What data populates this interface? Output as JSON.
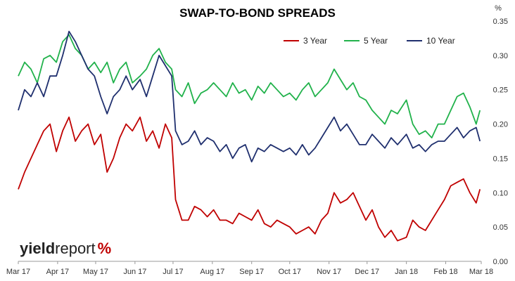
{
  "chart_data": {
    "type": "line",
    "title": "SWAP-TO-BOND SPREADS",
    "ylabel_unit": "%",
    "ylim": [
      0,
      0.35
    ],
    "yticks": [
      "0.00",
      "0.05",
      "0.10",
      "0.15",
      "0.20",
      "0.25",
      "0.30",
      "0.35"
    ],
    "xlim": [
      "2017-03-01",
      "2018-03-01"
    ],
    "xticks": [
      {
        "date": "2017-03-01",
        "label": "Mar 17"
      },
      {
        "date": "2017-04-01",
        "label": "Apr 17"
      },
      {
        "date": "2017-05-01",
        "label": "May 17"
      },
      {
        "date": "2017-06-01",
        "label": "Jun 17"
      },
      {
        "date": "2017-07-01",
        "label": "Jul 17"
      },
      {
        "date": "2017-08-01",
        "label": "Aug 17"
      },
      {
        "date": "2017-09-01",
        "label": "Sep 17"
      },
      {
        "date": "2017-10-01",
        "label": "Oct 17"
      },
      {
        "date": "2017-11-01",
        "label": "Nov 17"
      },
      {
        "date": "2017-12-01",
        "label": "Dec 17"
      },
      {
        "date": "2018-01-01",
        "label": "Jan 18"
      },
      {
        "date": "2018-02-01",
        "label": "Feb 18"
      },
      {
        "date": "2018-03-01",
        "label": "Mar 18"
      }
    ],
    "grid": false,
    "legend_position": "top-right",
    "series": [
      {
        "name": "3 Year",
        "color": "#c00000",
        "points": [
          [
            "2017-03-01",
            0.105
          ],
          [
            "2017-03-06",
            0.13
          ],
          [
            "2017-03-11",
            0.15
          ],
          [
            "2017-03-16",
            0.17
          ],
          [
            "2017-03-21",
            0.19
          ],
          [
            "2017-03-26",
            0.2
          ],
          [
            "2017-03-31",
            0.16
          ],
          [
            "2017-04-05",
            0.19
          ],
          [
            "2017-04-10",
            0.21
          ],
          [
            "2017-04-15",
            0.175
          ],
          [
            "2017-04-20",
            0.19
          ],
          [
            "2017-04-25",
            0.2
          ],
          [
            "2017-04-30",
            0.17
          ],
          [
            "2017-05-05",
            0.185
          ],
          [
            "2017-05-10",
            0.13
          ],
          [
            "2017-05-15",
            0.15
          ],
          [
            "2017-05-20",
            0.18
          ],
          [
            "2017-05-25",
            0.2
          ],
          [
            "2017-05-30",
            0.19
          ],
          [
            "2017-06-05",
            0.21
          ],
          [
            "2017-06-10",
            0.175
          ],
          [
            "2017-06-15",
            0.19
          ],
          [
            "2017-06-20",
            0.165
          ],
          [
            "2017-06-25",
            0.2
          ],
          [
            "2017-06-30",
            0.18
          ],
          [
            "2017-07-03",
            0.09
          ],
          [
            "2017-07-08",
            0.06
          ],
          [
            "2017-07-13",
            0.06
          ],
          [
            "2017-07-18",
            0.08
          ],
          [
            "2017-07-23",
            0.075
          ],
          [
            "2017-07-28",
            0.065
          ],
          [
            "2017-08-02",
            0.075
          ],
          [
            "2017-08-07",
            0.06
          ],
          [
            "2017-08-12",
            0.06
          ],
          [
            "2017-08-17",
            0.055
          ],
          [
            "2017-08-22",
            0.07
          ],
          [
            "2017-08-27",
            0.065
          ],
          [
            "2017-09-01",
            0.06
          ],
          [
            "2017-09-06",
            0.075
          ],
          [
            "2017-09-11",
            0.055
          ],
          [
            "2017-09-16",
            0.05
          ],
          [
            "2017-09-21",
            0.06
          ],
          [
            "2017-09-26",
            0.055
          ],
          [
            "2017-10-01",
            0.05
          ],
          [
            "2017-10-06",
            0.04
          ],
          [
            "2017-10-11",
            0.045
          ],
          [
            "2017-10-16",
            0.05
          ],
          [
            "2017-10-21",
            0.04
          ],
          [
            "2017-10-26",
            0.06
          ],
          [
            "2017-10-31",
            0.07
          ],
          [
            "2017-11-05",
            0.1
          ],
          [
            "2017-11-10",
            0.085
          ],
          [
            "2017-11-15",
            0.09
          ],
          [
            "2017-11-20",
            0.1
          ],
          [
            "2017-11-25",
            0.08
          ],
          [
            "2017-11-30",
            0.06
          ],
          [
            "2017-12-05",
            0.075
          ],
          [
            "2017-12-10",
            0.05
          ],
          [
            "2017-12-15",
            0.035
          ],
          [
            "2017-12-20",
            0.045
          ],
          [
            "2017-12-25",
            0.03
          ],
          [
            "2018-01-01",
            0.035
          ],
          [
            "2018-01-06",
            0.06
          ],
          [
            "2018-01-11",
            0.05
          ],
          [
            "2018-01-16",
            0.045
          ],
          [
            "2018-01-21",
            0.06
          ],
          [
            "2018-01-26",
            0.075
          ],
          [
            "2018-01-31",
            0.09
          ],
          [
            "2018-02-05",
            0.11
          ],
          [
            "2018-02-10",
            0.115
          ],
          [
            "2018-02-15",
            0.12
          ],
          [
            "2018-02-20",
            0.1
          ],
          [
            "2018-02-25",
            0.085
          ],
          [
            "2018-02-28",
            0.105
          ]
        ]
      },
      {
        "name": "5 Year",
        "color": "#21b24b",
        "points": [
          [
            "2017-03-01",
            0.27
          ],
          [
            "2017-03-06",
            0.29
          ],
          [
            "2017-03-11",
            0.28
          ],
          [
            "2017-03-16",
            0.26
          ],
          [
            "2017-03-21",
            0.295
          ],
          [
            "2017-03-26",
            0.3
          ],
          [
            "2017-03-31",
            0.29
          ],
          [
            "2017-04-05",
            0.32
          ],
          [
            "2017-04-10",
            0.33
          ],
          [
            "2017-04-15",
            0.31
          ],
          [
            "2017-04-20",
            0.3
          ],
          [
            "2017-04-25",
            0.28
          ],
          [
            "2017-04-30",
            0.29
          ],
          [
            "2017-05-05",
            0.275
          ],
          [
            "2017-05-10",
            0.29
          ],
          [
            "2017-05-15",
            0.26
          ],
          [
            "2017-05-20",
            0.28
          ],
          [
            "2017-05-25",
            0.29
          ],
          [
            "2017-05-30",
            0.26
          ],
          [
            "2017-06-05",
            0.27
          ],
          [
            "2017-06-10",
            0.28
          ],
          [
            "2017-06-15",
            0.3
          ],
          [
            "2017-06-20",
            0.31
          ],
          [
            "2017-06-25",
            0.29
          ],
          [
            "2017-06-30",
            0.28
          ],
          [
            "2017-07-03",
            0.25
          ],
          [
            "2017-07-08",
            0.24
          ],
          [
            "2017-07-13",
            0.26
          ],
          [
            "2017-07-18",
            0.23
          ],
          [
            "2017-07-23",
            0.245
          ],
          [
            "2017-07-28",
            0.25
          ],
          [
            "2017-08-02",
            0.26
          ],
          [
            "2017-08-07",
            0.25
          ],
          [
            "2017-08-12",
            0.24
          ],
          [
            "2017-08-17",
            0.26
          ],
          [
            "2017-08-22",
            0.245
          ],
          [
            "2017-08-27",
            0.25
          ],
          [
            "2017-09-01",
            0.235
          ],
          [
            "2017-09-06",
            0.255
          ],
          [
            "2017-09-11",
            0.245
          ],
          [
            "2017-09-16",
            0.26
          ],
          [
            "2017-09-21",
            0.25
          ],
          [
            "2017-09-26",
            0.24
          ],
          [
            "2017-10-01",
            0.245
          ],
          [
            "2017-10-06",
            0.235
          ],
          [
            "2017-10-11",
            0.25
          ],
          [
            "2017-10-16",
            0.26
          ],
          [
            "2017-10-21",
            0.24
          ],
          [
            "2017-10-26",
            0.25
          ],
          [
            "2017-10-31",
            0.26
          ],
          [
            "2017-11-05",
            0.28
          ],
          [
            "2017-11-10",
            0.265
          ],
          [
            "2017-11-15",
            0.25
          ],
          [
            "2017-11-20",
            0.26
          ],
          [
            "2017-11-25",
            0.24
          ],
          [
            "2017-11-30",
            0.235
          ],
          [
            "2017-12-05",
            0.22
          ],
          [
            "2017-12-10",
            0.21
          ],
          [
            "2017-12-15",
            0.2
          ],
          [
            "2017-12-20",
            0.22
          ],
          [
            "2017-12-25",
            0.215
          ],
          [
            "2018-01-01",
            0.235
          ],
          [
            "2018-01-06",
            0.2
          ],
          [
            "2018-01-11",
            0.185
          ],
          [
            "2018-01-16",
            0.19
          ],
          [
            "2018-01-21",
            0.18
          ],
          [
            "2018-01-26",
            0.2
          ],
          [
            "2018-01-31",
            0.2
          ],
          [
            "2018-02-05",
            0.22
          ],
          [
            "2018-02-10",
            0.24
          ],
          [
            "2018-02-15",
            0.245
          ],
          [
            "2018-02-20",
            0.225
          ],
          [
            "2018-02-25",
            0.2
          ],
          [
            "2018-02-28",
            0.22
          ]
        ]
      },
      {
        "name": "10 Year",
        "color": "#1f2f6e",
        "points": [
          [
            "2017-03-01",
            0.22
          ],
          [
            "2017-03-06",
            0.25
          ],
          [
            "2017-03-11",
            0.24
          ],
          [
            "2017-03-16",
            0.26
          ],
          [
            "2017-03-21",
            0.24
          ],
          [
            "2017-03-26",
            0.27
          ],
          [
            "2017-03-31",
            0.27
          ],
          [
            "2017-04-05",
            0.3
          ],
          [
            "2017-04-10",
            0.335
          ],
          [
            "2017-04-15",
            0.32
          ],
          [
            "2017-04-20",
            0.3
          ],
          [
            "2017-04-25",
            0.28
          ],
          [
            "2017-04-30",
            0.27
          ],
          [
            "2017-05-05",
            0.24
          ],
          [
            "2017-05-10",
            0.215
          ],
          [
            "2017-05-15",
            0.24
          ],
          [
            "2017-05-20",
            0.25
          ],
          [
            "2017-05-25",
            0.27
          ],
          [
            "2017-05-30",
            0.25
          ],
          [
            "2017-06-05",
            0.265
          ],
          [
            "2017-06-10",
            0.24
          ],
          [
            "2017-06-15",
            0.27
          ],
          [
            "2017-06-20",
            0.3
          ],
          [
            "2017-06-25",
            0.285
          ],
          [
            "2017-06-30",
            0.27
          ],
          [
            "2017-07-03",
            0.19
          ],
          [
            "2017-07-08",
            0.17
          ],
          [
            "2017-07-13",
            0.175
          ],
          [
            "2017-07-18",
            0.19
          ],
          [
            "2017-07-23",
            0.17
          ],
          [
            "2017-07-28",
            0.18
          ],
          [
            "2017-08-02",
            0.175
          ],
          [
            "2017-08-07",
            0.16
          ],
          [
            "2017-08-12",
            0.17
          ],
          [
            "2017-08-17",
            0.15
          ],
          [
            "2017-08-22",
            0.165
          ],
          [
            "2017-08-27",
            0.17
          ],
          [
            "2017-09-01",
            0.145
          ],
          [
            "2017-09-06",
            0.165
          ],
          [
            "2017-09-11",
            0.16
          ],
          [
            "2017-09-16",
            0.17
          ],
          [
            "2017-09-21",
            0.165
          ],
          [
            "2017-09-26",
            0.16
          ],
          [
            "2017-10-01",
            0.165
          ],
          [
            "2017-10-06",
            0.155
          ],
          [
            "2017-10-11",
            0.17
          ],
          [
            "2017-10-16",
            0.155
          ],
          [
            "2017-10-21",
            0.165
          ],
          [
            "2017-10-26",
            0.18
          ],
          [
            "2017-10-31",
            0.195
          ],
          [
            "2017-11-05",
            0.21
          ],
          [
            "2017-11-10",
            0.19
          ],
          [
            "2017-11-15",
            0.2
          ],
          [
            "2017-11-20",
            0.185
          ],
          [
            "2017-11-25",
            0.17
          ],
          [
            "2017-11-30",
            0.17
          ],
          [
            "2017-12-05",
            0.185
          ],
          [
            "2017-12-10",
            0.175
          ],
          [
            "2017-12-15",
            0.165
          ],
          [
            "2017-12-20",
            0.18
          ],
          [
            "2017-12-25",
            0.17
          ],
          [
            "2018-01-01",
            0.185
          ],
          [
            "2018-01-06",
            0.165
          ],
          [
            "2018-01-11",
            0.17
          ],
          [
            "2018-01-16",
            0.16
          ],
          [
            "2018-01-21",
            0.17
          ],
          [
            "2018-01-26",
            0.175
          ],
          [
            "2018-01-31",
            0.175
          ],
          [
            "2018-02-05",
            0.185
          ],
          [
            "2018-02-10",
            0.195
          ],
          [
            "2018-02-15",
            0.18
          ],
          [
            "2018-02-20",
            0.19
          ],
          [
            "2018-02-25",
            0.195
          ],
          [
            "2018-02-28",
            0.175
          ]
        ]
      }
    ]
  },
  "logo": {
    "part1": "yield",
    "part2": "report",
    "part3": "%"
  }
}
